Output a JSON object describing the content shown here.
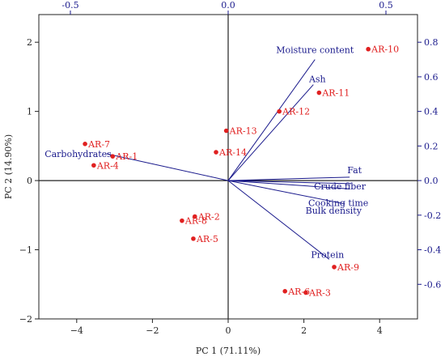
{
  "chart_data": {
    "type": "scatter",
    "subtype": "biplot",
    "title": "",
    "xlabel": "PC 1 (71.11%)",
    "ylabel": "PC 2 (14.90%)",
    "xlim": [
      -5,
      5
    ],
    "ylim": [
      -2,
      2.4
    ],
    "xticks": [
      -4,
      -2,
      0,
      2,
      4
    ],
    "yticks": [
      -2,
      -1,
      0,
      1,
      2
    ],
    "secondary_xlim": [
      -0.6,
      0.6
    ],
    "secondary_xticks": [
      -0.5,
      0.0,
      0.5
    ],
    "secondary_xtick_labels": [
      "-0.5",
      "0.0",
      "0.5"
    ],
    "secondary_ylim": [
      -0.8,
      0.96
    ],
    "secondary_yticks": [
      -0.6,
      -0.4,
      -0.2,
      0.0,
      0.2,
      0.4,
      0.6,
      0.8
    ],
    "secondary_ytick_labels": [
      "-0.6",
      "-0.4",
      "-0.2",
      "0.0",
      "0.2",
      "0.4",
      "0.6",
      "0.8"
    ],
    "zero_lines": true,
    "grid": false,
    "score_color": "#e02020",
    "loading_color": "#1a1a8c",
    "scores": [
      {
        "label": "AR-1",
        "x": -3.05,
        "y": 0.35
      },
      {
        "label": "AR-2",
        "x": -0.88,
        "y": -0.52
      },
      {
        "label": "AR-3",
        "x": 2.05,
        "y": -1.62
      },
      {
        "label": "AR-4",
        "x": -3.55,
        "y": 0.22
      },
      {
        "label": "AR-5",
        "x": -0.92,
        "y": -0.84
      },
      {
        "label": "AR-6",
        "x": 1.5,
        "y": -1.6
      },
      {
        "label": "AR-7",
        "x": -3.78,
        "y": 0.53
      },
      {
        "label": "AR-8",
        "x": -1.22,
        "y": -0.58
      },
      {
        "label": "AR-9",
        "x": 2.8,
        "y": -1.25
      },
      {
        "label": "AR-10",
        "x": 3.7,
        "y": 1.9
      },
      {
        "label": "AR-11",
        "x": 2.4,
        "y": 1.27
      },
      {
        "label": "AR-12",
        "x": 1.35,
        "y": 1.0
      },
      {
        "label": "AR-13",
        "x": -0.05,
        "y": 0.72
      },
      {
        "label": "AR-14",
        "x": -0.32,
        "y": 0.41
      }
    ],
    "loadings": [
      {
        "name": "Moisture content",
        "x": 0.275,
        "y": 0.7
      },
      {
        "name": "Ash",
        "x": 0.27,
        "y": 0.555
      },
      {
        "name": "Carbohydrates",
        "x": -0.385,
        "y": 0.155
      },
      {
        "name": "Fat",
        "x": 0.385,
        "y": 0.02
      },
      {
        "name": "Crude fiber",
        "x": 0.39,
        "y": -0.018
      },
      {
        "name": "Cooking time",
        "x": 0.385,
        "y": -0.048
      },
      {
        "name": "Bulk density",
        "x": 0.37,
        "y": -0.135
      },
      {
        "name": "Protein",
        "x": 0.32,
        "y": -0.455
      }
    ]
  }
}
